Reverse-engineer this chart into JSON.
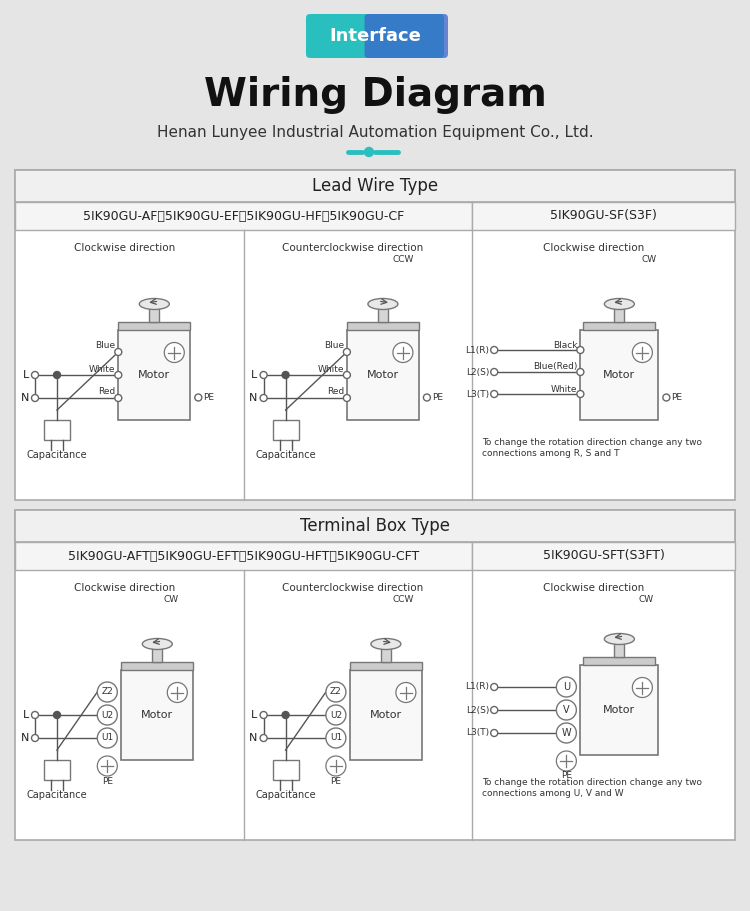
{
  "bg_color": "#e5e5e5",
  "white": "#ffffff",
  "light_gray": "#f0f0f0",
  "mid_gray": "#cccccc",
  "dark_gray": "#777777",
  "black": "#222222",
  "border_color": "#aaaaaa",
  "badge_text": "Interface",
  "title_main": "Wiring Diagram",
  "title_sub": "Henan Lunyee Industrial Automation Equipment Co., Ltd.",
  "section1_title": "Lead Wire Type",
  "section1_left_header": "5IK90GU-AF、5IK90GU-EF、5IK90GU-HF、5IK90GU-CF",
  "section1_right_header": "5IK90GU-SF(S3F)",
  "section2_title": "Terminal Box Type",
  "section2_left_header": "5IK90GU-AFT、5IK90GU-EFT、5IK90GU-HFT、5IK90GU-CFT",
  "section2_right_header": "5IK90GU-SFT(S3FT)",
  "fig_w": 7.5,
  "fig_h": 9.11,
  "dpi": 100
}
